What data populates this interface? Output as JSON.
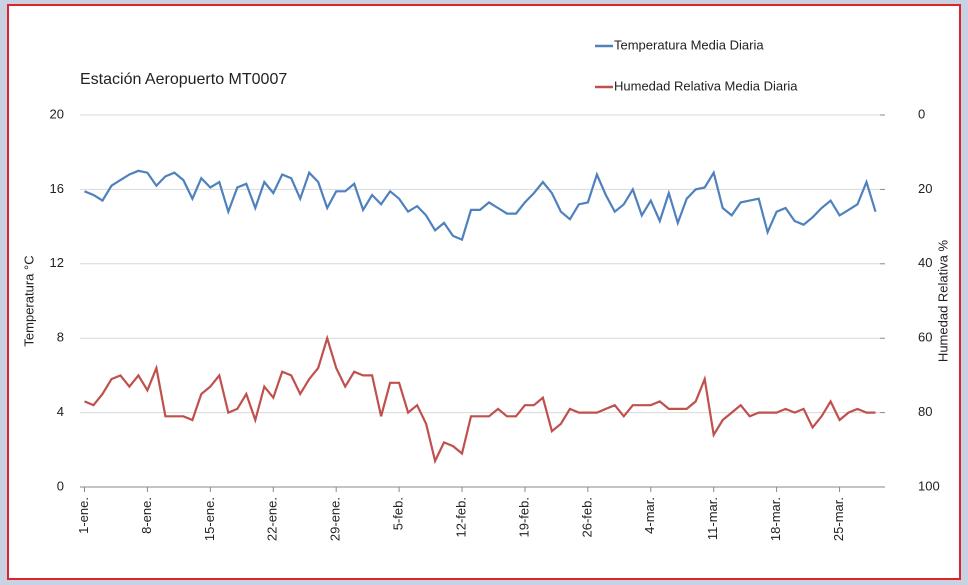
{
  "chart_data": {
    "type": "line",
    "title": "Estación Aeropuerto  MT0007",
    "y_label": "Temperatura °C",
    "y2_label": "Humedad Relativa %",
    "categories": [
      "1-ene.",
      null,
      null,
      null,
      null,
      null,
      null,
      "8-ene.",
      null,
      null,
      null,
      null,
      null,
      null,
      "15-ene.",
      null,
      null,
      null,
      null,
      null,
      null,
      "22-ene.",
      null,
      null,
      null,
      null,
      null,
      null,
      "29-ene.",
      null,
      null,
      null,
      null,
      null,
      null,
      "5-feb.",
      null,
      null,
      null,
      null,
      null,
      null,
      "12-feb.",
      null,
      null,
      null,
      null,
      null,
      null,
      "19-feb.",
      null,
      null,
      null,
      null,
      null,
      null,
      "26-feb.",
      null,
      null,
      null,
      null,
      null,
      null,
      "4-mar.",
      null,
      null,
      null,
      null,
      null,
      null,
      "11-mar.",
      null,
      null,
      null,
      null,
      null,
      null,
      "18-mar.",
      null,
      null,
      null,
      null,
      null,
      null,
      "25-mar.",
      null,
      null,
      null,
      null
    ],
    "series": [
      {
        "name": "Temperatura Media Diaria",
        "color": "#4f81bd",
        "values": [
          15.9,
          15.7,
          15.4,
          16.2,
          16.5,
          16.8,
          17.0,
          16.9,
          16.2,
          16.7,
          16.9,
          16.5,
          15.5,
          16.6,
          16.1,
          16.4,
          14.8,
          16.1,
          16.3,
          15.0,
          16.4,
          15.8,
          16.8,
          16.6,
          15.5,
          16.9,
          16.4,
          15.0,
          15.9,
          15.9,
          16.3,
          14.9,
          15.7,
          15.2,
          15.9,
          15.5,
          14.8,
          15.1,
          14.6,
          13.8,
          14.2,
          13.5,
          13.3,
          14.9,
          14.9,
          15.3,
          15.0,
          14.7,
          14.7,
          15.3,
          15.8,
          16.4,
          15.8,
          14.8,
          14.4,
          15.2,
          15.3,
          16.8,
          15.7,
          14.8,
          15.2,
          16.0,
          14.6,
          15.4,
          14.3,
          15.8,
          14.2,
          15.5,
          16.0,
          16.1,
          16.9,
          15.0,
          14.6,
          15.3,
          15.4,
          15.5,
          13.7,
          14.8,
          15.0,
          14.3,
          14.1,
          14.5,
          15.0,
          15.4,
          14.6,
          14.9,
          15.2,
          16.4,
          14.8
        ]
      },
      {
        "name": "Humedad Relativa Media Diaria",
        "color": "#c0504d",
        "axis": "y2",
        "values": [
          77,
          78,
          75,
          71,
          70,
          73,
          70,
          74,
          68,
          81,
          81,
          81,
          82,
          75,
          73,
          70,
          80,
          79,
          75,
          82,
          73,
          76,
          69,
          70,
          75,
          71,
          68,
          60,
          68,
          73,
          69,
          70,
          70,
          81,
          72,
          72,
          80,
          78,
          83,
          93,
          88,
          89,
          91,
          81,
          81,
          81,
          79,
          81,
          81,
          78,
          78,
          76,
          85,
          83,
          79,
          80,
          80,
          80,
          79,
          78,
          81,
          78,
          78,
          78,
          77,
          79,
          79,
          79,
          77,
          71,
          86,
          82,
          80,
          78,
          81,
          80,
          80,
          80,
          79,
          80,
          79,
          84,
          81,
          77,
          82,
          80,
          79,
          80,
          80
        ]
      }
    ],
    "ylim": [
      0,
      20
    ],
    "yticks": [
      0,
      4,
      8,
      12,
      16,
      20
    ],
    "y2lim": [
      100,
      0
    ],
    "y2ticks": [
      0,
      20,
      40,
      60,
      80,
      100
    ],
    "grid": true,
    "legend": "top-right"
  }
}
